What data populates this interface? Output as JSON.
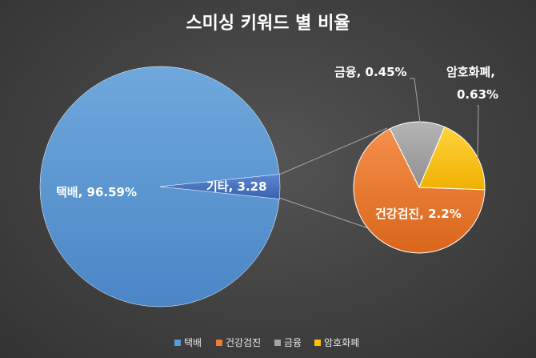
{
  "chart_data": {
    "type": "pie",
    "subtype": "pie-of-pie",
    "title": "스미싱 키워드 별 비율",
    "main_slices": [
      {
        "name": "택배",
        "value": 96.59,
        "label": "택배, 96.59%",
        "color": "#5b9bd5"
      },
      {
        "name": "기타",
        "value": 3.28,
        "label": "기타, 3.28",
        "color": "#4472c4"
      }
    ],
    "secondary_slices": [
      {
        "name": "건강검진",
        "value": 2.2,
        "label": "건강검진, 2.2%",
        "color": "#ed7d31"
      },
      {
        "name": "금융",
        "value": 0.45,
        "label": "금융, 0.45%",
        "color": "#a5a5a5"
      },
      {
        "name": "암호화폐",
        "value": 0.63,
        "label_lines": [
          "암호화폐,",
          "0.63%"
        ],
        "color": "#ffc000"
      }
    ],
    "legend": {
      "position": "bottom",
      "entries": [
        {
          "name": "택배",
          "color": "#5b9bd5"
        },
        {
          "name": "건강검진",
          "color": "#ed7d31"
        },
        {
          "name": "금융",
          "color": "#a5a5a5"
        },
        {
          "name": "암호화폐",
          "color": "#ffc000"
        }
      ]
    }
  }
}
